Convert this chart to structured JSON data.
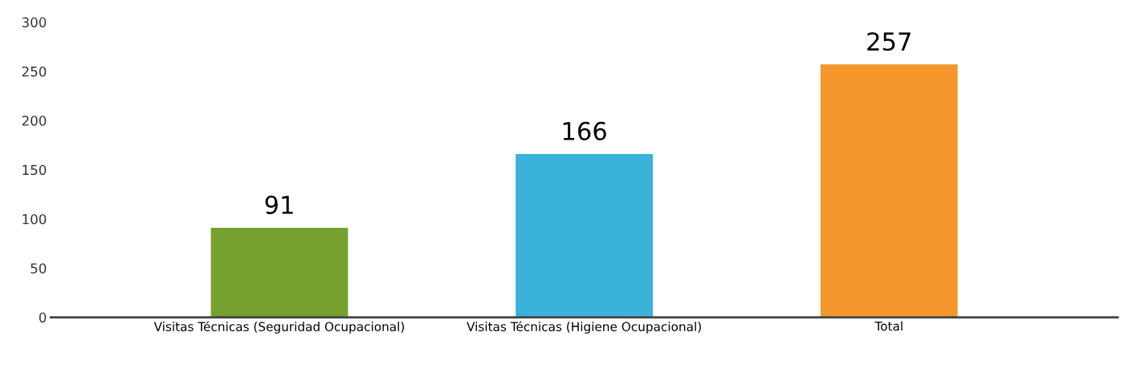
{
  "chart_data": {
    "type": "bar",
    "categories": [
      "Visitas Técnicas (Seguridad Ocupacional)",
      "Visitas Técnicas (Higiene Ocupacional)",
      "Total"
    ],
    "values": [
      91,
      166,
      257
    ],
    "colors": [
      "#76a12e",
      "#3ab2da",
      "#f3962c"
    ],
    "ylim": [
      0,
      300
    ],
    "yticks": [
      0,
      50,
      100,
      150,
      200,
      250,
      300
    ],
    "data_labels": true,
    "grid": false,
    "legend": false
  }
}
